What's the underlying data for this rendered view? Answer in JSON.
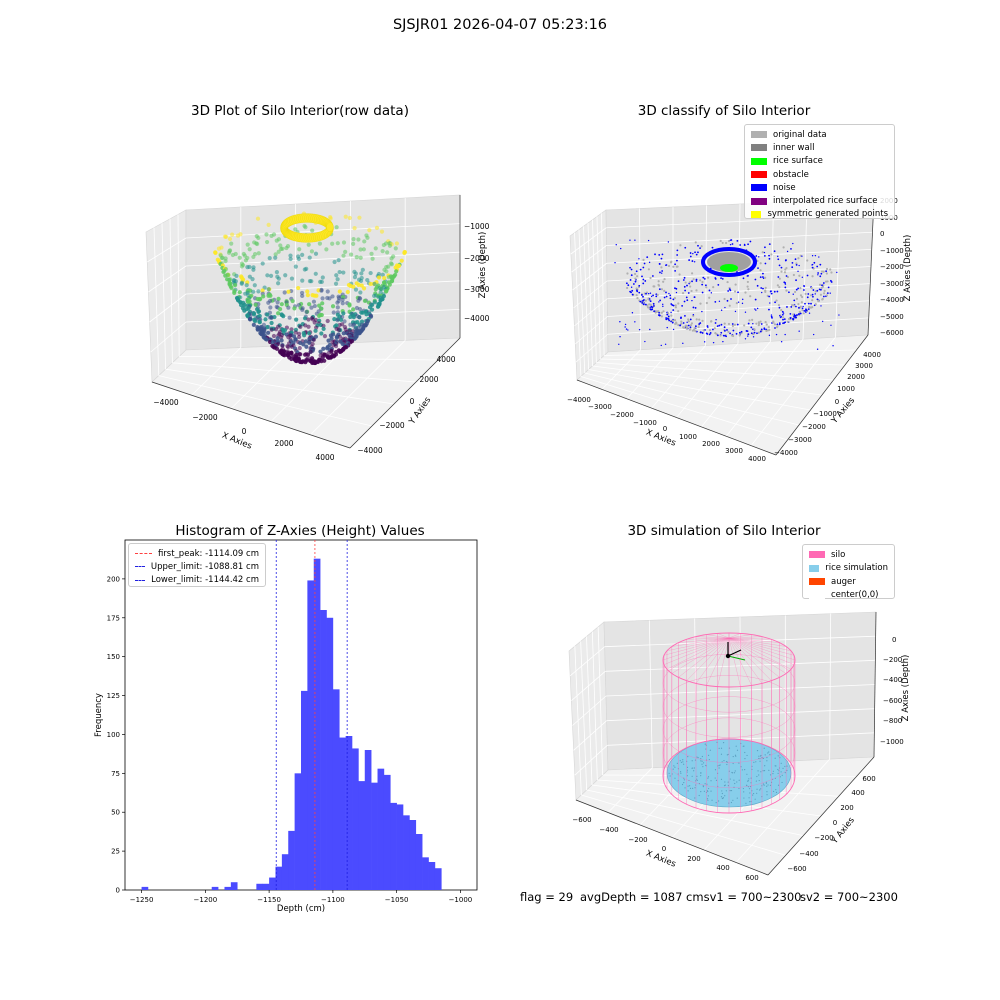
{
  "figure": {
    "suptitle": "SJSJR01 2026-04-07 05:23:16",
    "footer": {
      "flag": "flag = 29",
      "avg_depth": "avgDepth = 1087 cmsv1 = 700~2300",
      "sv2": "sv2 = 700~2300"
    }
  },
  "colors": {
    "hist_bar": "#4b4bff",
    "peak_line": "#ff4040",
    "limit_line": "#2020e0",
    "silo": "#ff69b4",
    "rice": "#87ceeb",
    "auger": "#ff4500",
    "noise": "#0000ff",
    "original": "#b0b0b0",
    "symmetric": "#ffff00",
    "rice_surface": "#00ff00"
  },
  "panels": {
    "raw": {
      "title": "3D Plot of Silo Interior(row data)",
      "xlabel": "X Axies",
      "ylabel": "Y Axies",
      "zlabel": "Z Axies (Depth)",
      "xticks": [
        "−4000",
        "−2000",
        "0",
        "2000",
        "4000"
      ],
      "yticks": [
        "−4000",
        "−2000",
        "0",
        "2000",
        "4000"
      ],
      "zticks": [
        "−1000",
        "−2000",
        "−3000",
        "−4000"
      ],
      "colormap": [
        "#440154",
        "#3b528b",
        "#21918c",
        "#5ec962",
        "#fde725"
      ]
    },
    "classify": {
      "title": "3D classify of Silo Interior",
      "xlabel": "X Axies",
      "ylabel": "Y Axies",
      "zlabel": "Z Axies (Depth)",
      "xticks": [
        "−4000",
        "−3000",
        "−2000",
        "−1000",
        "0",
        "1000",
        "2000",
        "3000",
        "4000"
      ],
      "yticks": [
        "−4000",
        "−3000",
        "−2000",
        "−1000",
        "0",
        "1000",
        "2000",
        "3000",
        "4000"
      ],
      "zticks": [
        "2000",
        "1000",
        "0",
        "−1000",
        "−2000",
        "−3000",
        "−4000",
        "−5000",
        "−6000"
      ],
      "legend": [
        {
          "label": "original data",
          "color": "#b0b0b0"
        },
        {
          "label": "inner wall",
          "color": "#808080"
        },
        {
          "label": "rice surface",
          "color": "#00ff00"
        },
        {
          "label": "obstacle",
          "color": "#ff0000"
        },
        {
          "label": "noise",
          "color": "#0000ff"
        },
        {
          "label": "interpolated rice surface",
          "color": "#800080"
        },
        {
          "label": "symmetric generated points",
          "color": "#ffff00"
        }
      ]
    },
    "histogram": {
      "title": "Histogram of Z-Axies (Height) Values",
      "xlabel": "Depth (cm)",
      "ylabel": "Frequency",
      "legend": [
        {
          "label": "first_peak: -1114.09 cm",
          "color": "#ff4040"
        },
        {
          "label": "Upper_limit: -1088.81 cm",
          "color": "#2020e0"
        },
        {
          "label": "Lower_limit: -1144.42 cm",
          "color": "#2020e0"
        }
      ]
    },
    "simulation": {
      "title": "3D simulation of Silo Interior",
      "xlabel": "X Axies",
      "ylabel": "Y Axies",
      "zlabel": "Z Axies (Depth)",
      "xticks": [
        "−600",
        "−400",
        "−200",
        "0",
        "200",
        "400",
        "600"
      ],
      "yticks": [
        "−600",
        "−400",
        "−200",
        "0",
        "200",
        "400",
        "600"
      ],
      "zticks": [
        "0",
        "−200",
        "−400",
        "−600",
        "−800",
        "−1000"
      ],
      "legend": [
        {
          "label": "silo",
          "color": "#ff69b4"
        },
        {
          "label": "rice simulation",
          "color": "#87ceeb"
        },
        {
          "label": "auger",
          "color": "#ff4500"
        },
        {
          "label": "center(0,0)",
          "color": "#ffffff"
        }
      ]
    }
  },
  "chart_data": [
    {
      "type": "bar",
      "title": "Histogram of Z-Axies (Height) Values",
      "xlabel": "Depth (cm)",
      "ylabel": "Frequency",
      "xlim": [
        -1263,
        -987
      ],
      "ylim": [
        0,
        225
      ],
      "xticks": [
        -1250,
        -1200,
        -1150,
        -1100,
        -1050,
        -1000
      ],
      "yticks": [
        0,
        25,
        50,
        75,
        100,
        125,
        150,
        175,
        200
      ],
      "bin_width": 5,
      "bins": [
        {
          "x": -1250,
          "y": 2
        },
        {
          "x": -1195,
          "y": 2
        },
        {
          "x": -1185,
          "y": 2
        },
        {
          "x": -1180,
          "y": 5
        },
        {
          "x": -1160,
          "y": 4
        },
        {
          "x": -1155,
          "y": 4
        },
        {
          "x": -1150,
          "y": 8
        },
        {
          "x": -1145,
          "y": 15
        },
        {
          "x": -1140,
          "y": 23
        },
        {
          "x": -1135,
          "y": 38
        },
        {
          "x": -1130,
          "y": 75
        },
        {
          "x": -1125,
          "y": 128
        },
        {
          "x": -1120,
          "y": 199
        },
        {
          "x": -1115,
          "y": 213
        },
        {
          "x": -1110,
          "y": 180
        },
        {
          "x": -1105,
          "y": 175
        },
        {
          "x": -1100,
          "y": 129
        },
        {
          "x": -1095,
          "y": 98
        },
        {
          "x": -1090,
          "y": 99
        },
        {
          "x": -1085,
          "y": 91
        },
        {
          "x": -1080,
          "y": 70
        },
        {
          "x": -1075,
          "y": 90
        },
        {
          "x": -1070,
          "y": 69
        },
        {
          "x": -1065,
          "y": 78
        },
        {
          "x": -1060,
          "y": 74
        },
        {
          "x": -1055,
          "y": 56
        },
        {
          "x": -1050,
          "y": 55
        },
        {
          "x": -1045,
          "y": 48
        },
        {
          "x": -1040,
          "y": 45
        },
        {
          "x": -1035,
          "y": 36
        },
        {
          "x": -1030,
          "y": 21
        },
        {
          "x": -1025,
          "y": 18
        },
        {
          "x": -1020,
          "y": 14
        }
      ],
      "vlines": [
        {
          "name": "first_peak: -1114.09 cm",
          "x": -1114.09
        },
        {
          "name": "Upper_limit: -1088.81 cm",
          "x": -1088.81
        },
        {
          "name": "Lower_limit: -1144.42 cm",
          "x": -1144.42
        }
      ]
    }
  ]
}
